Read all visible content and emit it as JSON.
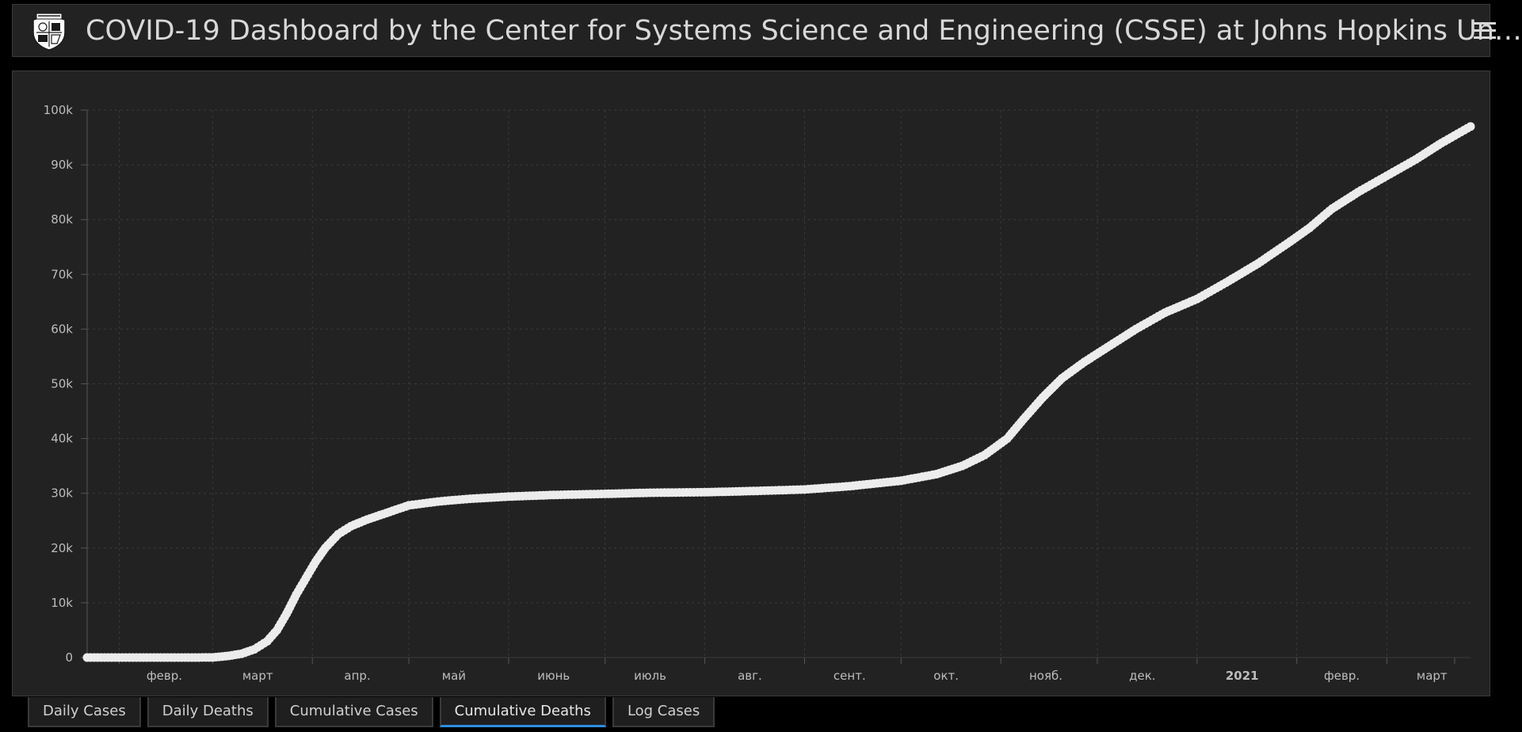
{
  "header": {
    "title": "COVID-19 Dashboard by the Center for Systems Science and Engineering (CSSE) at Johns Hopkins Un…",
    "logo_icon": "jhu-shield-icon",
    "menu_icon": "hamburger-menu-icon"
  },
  "tabs": [
    {
      "label": "Daily Cases",
      "active": false
    },
    {
      "label": "Daily Deaths",
      "active": false
    },
    {
      "label": "Cumulative Cases",
      "active": false
    },
    {
      "label": "Cumulative Deaths",
      "active": true
    },
    {
      "label": "Log Cases",
      "active": false
    }
  ],
  "colors": {
    "background": "#000000",
    "panel": "#222222",
    "line": "#ececec",
    "grid": "#3a3a3a",
    "axis_text": "#bdbdbd",
    "active_tab": "#2c8fe0"
  },
  "chart_data": {
    "type": "line",
    "marker": "circle",
    "grid": true,
    "x_start": "2020-01-22",
    "x_end": "2021-03-27",
    "ylim": [
      0,
      100000
    ],
    "y_ticks": [
      0,
      10000,
      20000,
      30000,
      40000,
      50000,
      60000,
      70000,
      80000,
      90000,
      100000
    ],
    "y_tick_labels": [
      "0",
      "10k",
      "20k",
      "30k",
      "40k",
      "50k",
      "60k",
      "70k",
      "80k",
      "90k",
      "100k"
    ],
    "x_ticks": [
      {
        "date": "2020-02-01",
        "label": "февр.",
        "bold": false
      },
      {
        "date": "2020-03-01",
        "label": "март",
        "bold": false
      },
      {
        "date": "2020-04-01",
        "label": "апр.",
        "bold": false
      },
      {
        "date": "2020-05-01",
        "label": "май",
        "bold": false
      },
      {
        "date": "2020-06-01",
        "label": "июнь",
        "bold": false
      },
      {
        "date": "2020-07-01",
        "label": "июль",
        "bold": false
      },
      {
        "date": "2020-08-01",
        "label": "авг.",
        "bold": false
      },
      {
        "date": "2020-09-01",
        "label": "сент.",
        "bold": false
      },
      {
        "date": "2020-10-01",
        "label": "окт.",
        "bold": false
      },
      {
        "date": "2020-11-01",
        "label": "нояб.",
        "bold": false
      },
      {
        "date": "2020-12-01",
        "label": "дек.",
        "bold": false
      },
      {
        "date": "2021-01-01",
        "label": "2021",
        "bold": true
      },
      {
        "date": "2021-02-01",
        "label": "февр.",
        "bold": false
      },
      {
        "date": "2021-03-01",
        "label": "март",
        "bold": false
      }
    ],
    "title": "",
    "xlabel": "",
    "ylabel": "",
    "series": [
      {
        "points": [
          [
            "2020-01-22",
            0
          ],
          [
            "2020-02-15",
            0
          ],
          [
            "2020-03-01",
            10
          ],
          [
            "2020-03-06",
            300
          ],
          [
            "2020-03-10",
            700
          ],
          [
            "2020-03-14",
            1500
          ],
          [
            "2020-03-18",
            3000
          ],
          [
            "2020-03-21",
            5000
          ],
          [
            "2020-03-24",
            8000
          ],
          [
            "2020-03-27",
            11500
          ],
          [
            "2020-03-30",
            14500
          ],
          [
            "2020-04-02",
            17500
          ],
          [
            "2020-04-05",
            20000
          ],
          [
            "2020-04-09",
            22500
          ],
          [
            "2020-04-13",
            24000
          ],
          [
            "2020-04-18",
            25200
          ],
          [
            "2020-04-24",
            26400
          ],
          [
            "2020-05-01",
            27800
          ],
          [
            "2020-05-10",
            28500
          ],
          [
            "2020-05-20",
            29000
          ],
          [
            "2020-06-01",
            29400
          ],
          [
            "2020-06-15",
            29700
          ],
          [
            "2020-07-01",
            29900
          ],
          [
            "2020-07-15",
            30100
          ],
          [
            "2020-08-01",
            30200
          ],
          [
            "2020-08-15",
            30400
          ],
          [
            "2020-09-01",
            30700
          ],
          [
            "2020-09-15",
            31300
          ],
          [
            "2020-10-01",
            32300
          ],
          [
            "2020-10-12",
            33500
          ],
          [
            "2020-10-20",
            35000
          ],
          [
            "2020-10-27",
            37000
          ],
          [
            "2020-11-03",
            40000
          ],
          [
            "2020-11-08",
            43500
          ],
          [
            "2020-11-14",
            47500
          ],
          [
            "2020-11-20",
            51000
          ],
          [
            "2020-11-27",
            54000
          ],
          [
            "2020-12-05",
            57000
          ],
          [
            "2020-12-13",
            60000
          ],
          [
            "2020-12-22",
            63000
          ],
          [
            "2021-01-01",
            65500
          ],
          [
            "2021-01-10",
            68500
          ],
          [
            "2021-01-20",
            72000
          ],
          [
            "2021-01-30",
            76000
          ],
          [
            "2021-02-05",
            78500
          ],
          [
            "2021-02-12",
            82000
          ],
          [
            "2021-02-20",
            85000
          ],
          [
            "2021-03-01",
            88000
          ],
          [
            "2021-03-10",
            91000
          ],
          [
            "2021-03-18",
            94000
          ],
          [
            "2021-03-27",
            97000
          ]
        ]
      }
    ]
  }
}
